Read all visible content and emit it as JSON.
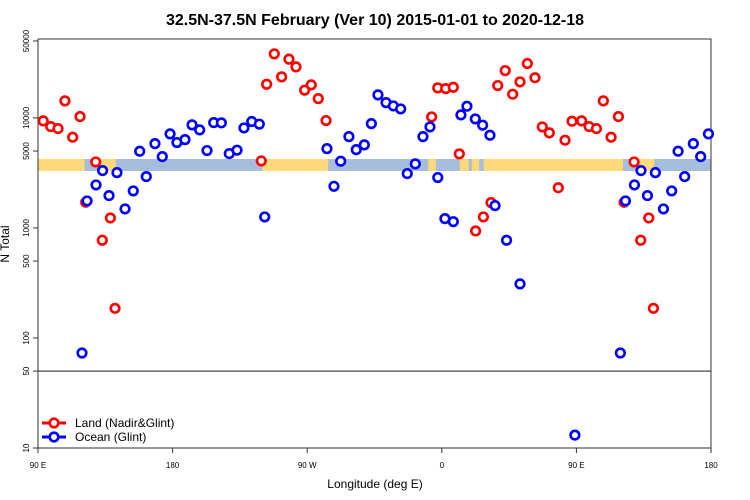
{
  "chart_data": {
    "type": "scatter",
    "title": "32.5N-37.5N February (Ver 10)   2015-01-01 to 2020-12-18",
    "xlabel": "Longitude (deg E)",
    "ylabel": "N Total",
    "x_range_deg_east": [
      90,
      540
    ],
    "x_ticks": [
      {
        "value": 90,
        "label": "90 E"
      },
      {
        "value": 180,
        "label": "180"
      },
      {
        "value": 270,
        "label": "90 W"
      },
      {
        "value": 360,
        "label": "0"
      },
      {
        "value": 450,
        "label": "90 E"
      },
      {
        "value": 540,
        "label": "180"
      }
    ],
    "y_scale": "log",
    "ylim": [
      10,
      50000
    ],
    "y_ticks": [
      {
        "value": 10,
        "label": "10"
      },
      {
        "value": 50,
        "label": "50"
      },
      {
        "value": 100,
        "label": "100"
      },
      {
        "value": 500,
        "label": "500"
      },
      {
        "value": 1000,
        "label": "1000"
      },
      {
        "value": 5000,
        "label": "5000"
      },
      {
        "value": 10000,
        "label": "10000"
      },
      {
        "value": 50000,
        "label": "50000"
      }
    ],
    "reference_line_y": 50,
    "grid": false,
    "legend_position": "bottom-left",
    "land_ocean_strip": {
      "land_color": "#FFD97A",
      "ocean_color": "#A6BDDB",
      "land_lon_segments": [
        [
          90,
          121
        ],
        [
          130,
          142
        ],
        [
          -120,
          -76
        ],
        [
          -9,
          -4
        ],
        [
          -2,
          8
        ],
        [
          12,
          18
        ],
        [
          20,
          25
        ],
        [
          28,
          121
        ]
      ]
    },
    "series": [
      {
        "name": "Land (Nadir&Glint)",
        "color": "#FF0000",
        "points_lon_value": [
          [
            93.5,
            9400
          ],
          [
            98.5,
            8340
          ],
          [
            103.4,
            8000
          ],
          [
            108,
            14280
          ],
          [
            113.2,
            6680
          ],
          [
            118.1,
            10280
          ],
          [
            121.9,
            1713
          ],
          [
            128.6,
            3980
          ],
          [
            133,
            773
          ],
          [
            138.4,
            1232
          ],
          [
            141.5,
            186
          ],
          [
            -120.7,
            4065
          ],
          [
            -117.1,
            20230
          ],
          [
            -112,
            38200
          ],
          [
            -107.1,
            23600
          ],
          [
            -102.2,
            34200
          ],
          [
            -97.5,
            29100
          ],
          [
            -91.7,
            17870
          ],
          [
            -87.3,
            19950
          ],
          [
            -82.6,
            14970
          ],
          [
            -77.4,
            9460
          ],
          [
            -6.8,
            10210
          ],
          [
            -2.7,
            18750
          ],
          [
            2.6,
            18460
          ],
          [
            7.7,
            19000
          ],
          [
            11.7,
            4710
          ],
          [
            22.6,
            939
          ],
          [
            27.8,
            1259
          ],
          [
            32.9,
            1698
          ],
          [
            37.4,
            19680
          ],
          [
            42.4,
            26900
          ],
          [
            47.4,
            16420
          ],
          [
            52.3,
            21250
          ],
          [
            57.2,
            31200
          ],
          [
            62.3,
            23200
          ],
          [
            67.2,
            8280
          ],
          [
            71.9,
            7310
          ],
          [
            77.9,
            2320
          ],
          [
            82.4,
            6270
          ],
          [
            87.1,
            9330
          ]
        ]
      },
      {
        "name": "Ocean (Glint)",
        "color": "#0000FF",
        "points_lon_value": [
          [
            119.4,
            73
          ],
          [
            122.8,
            1760
          ],
          [
            128.8,
            2460
          ],
          [
            133.2,
            3320
          ],
          [
            137.5,
            1968
          ],
          [
            142.8,
            3180
          ],
          [
            148.2,
            1489
          ],
          [
            153.7,
            2170
          ],
          [
            158,
            4980
          ],
          [
            162.4,
            2930
          ],
          [
            168.2,
            5840
          ],
          [
            173.1,
            4450
          ],
          [
            178.3,
            7160
          ],
          [
            -177.1,
            5970
          ],
          [
            -171.7,
            6350
          ],
          [
            -167,
            8640
          ],
          [
            -161.9,
            7780
          ],
          [
            -157,
            5050
          ],
          [
            -152.5,
            9060
          ],
          [
            -147.4,
            9010
          ],
          [
            -142.1,
            4740
          ],
          [
            -136.9,
            5090
          ],
          [
            -132.3,
            8110
          ],
          [
            -127.1,
            9270
          ],
          [
            -122,
            8770
          ],
          [
            -118.4,
            1259
          ],
          [
            -76.8,
            5260
          ],
          [
            -72.1,
            2390
          ],
          [
            -67.6,
            4040
          ],
          [
            -62.1,
            6760
          ],
          [
            -57.2,
            5150
          ],
          [
            -51.8,
            5690
          ],
          [
            -47.1,
            8870
          ],
          [
            -42.7,
            16190
          ],
          [
            -37.3,
            13770
          ],
          [
            -32.4,
            12850
          ],
          [
            -27.5,
            12070
          ],
          [
            -23.1,
            3120
          ],
          [
            -17.7,
            3820
          ],
          [
            -12.6,
            6760
          ],
          [
            -7.9,
            8280
          ],
          [
            -2.7,
            2870
          ],
          [
            2.1,
            1215
          ],
          [
            7.7,
            1140
          ],
          [
            12.8,
            10650
          ],
          [
            16.8,
            12770
          ],
          [
            22.4,
            9790
          ],
          [
            27.3,
            8590
          ],
          [
            32.2,
            6960
          ],
          [
            35.6,
            1595
          ],
          [
            43.3,
            773
          ],
          [
            52.3,
            310
          ],
          [
            89,
            13.1
          ]
        ]
      }
    ]
  }
}
